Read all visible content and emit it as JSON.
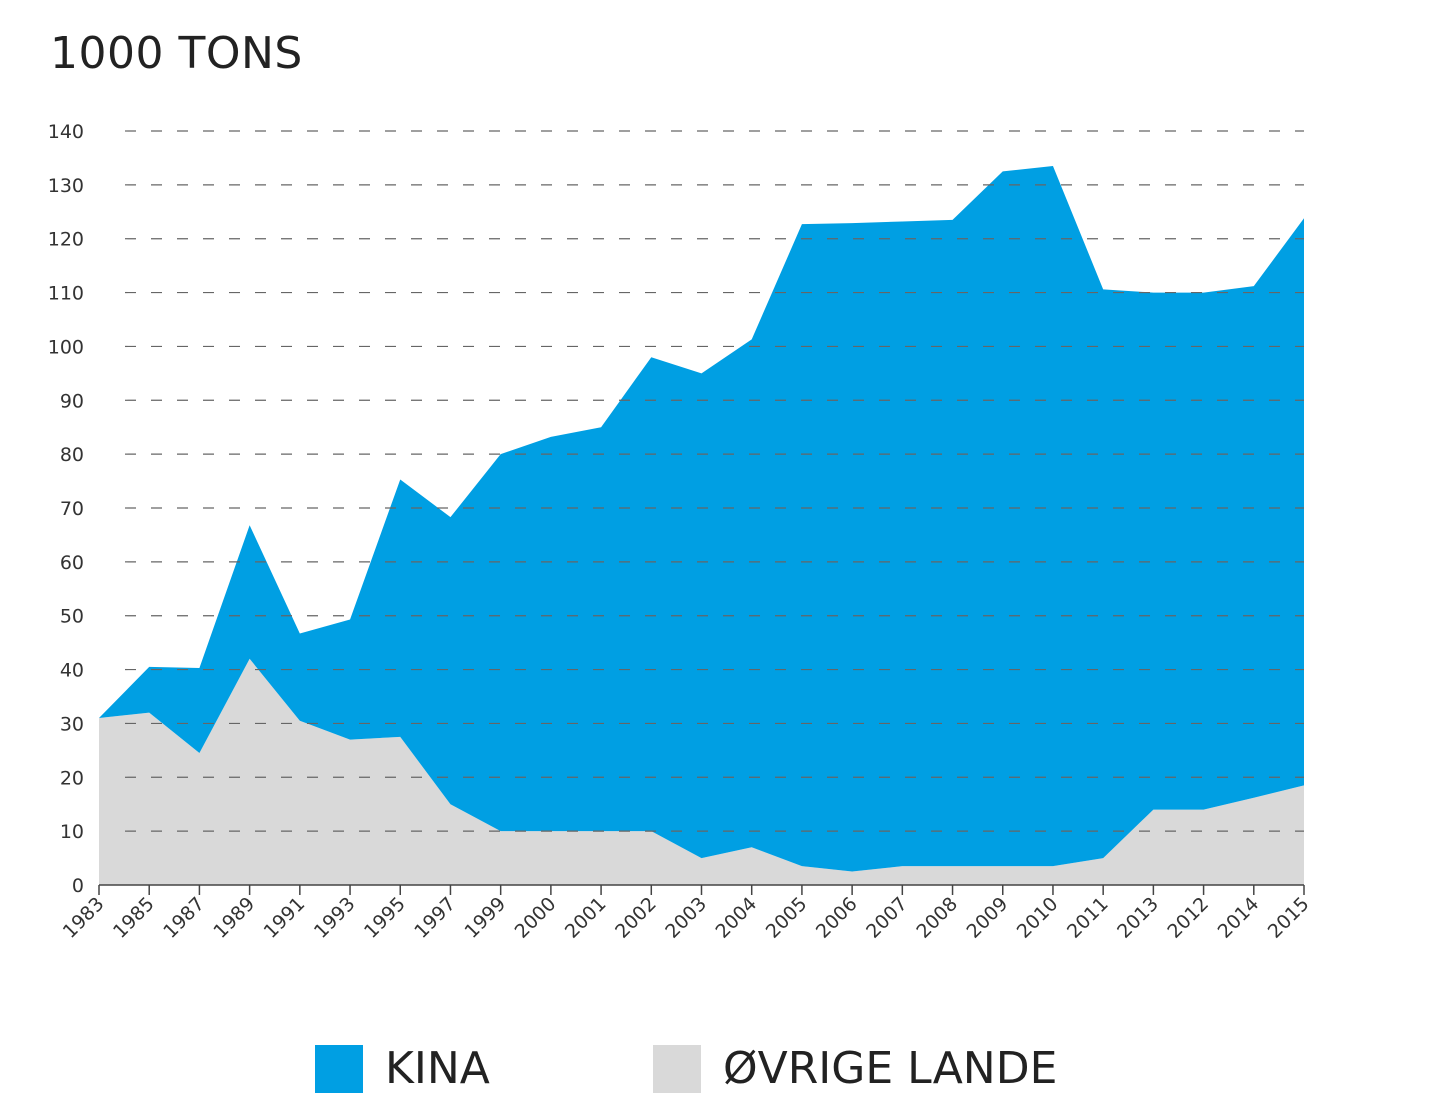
{
  "colors": {
    "kina": "#009fe3",
    "ovrige": "#d9d9d9",
    "grid": "#666666",
    "axis": "#444444"
  },
  "chart_data": {
    "type": "area",
    "stacked": true,
    "title": "1000 TONS",
    "xlabel": "",
    "ylabel": "",
    "ylim": [
      0,
      140
    ],
    "yticks": [
      0,
      10,
      20,
      30,
      40,
      50,
      60,
      70,
      80,
      90,
      100,
      110,
      120,
      130,
      140
    ],
    "grid": true,
    "legend_position": "bottom",
    "categories": [
      "1983",
      "1985",
      "1987",
      "1989",
      "1991",
      "1993",
      "1995",
      "1997",
      "1999",
      "2000",
      "2001",
      "2002",
      "2003",
      "2004",
      "2005",
      "2006",
      "2007",
      "2008",
      "2009",
      "2010",
      "2011",
      "2013",
      "2012",
      "2014",
      "2015"
    ],
    "series": [
      {
        "name": "ØVRIGE LANDE",
        "color": "#d9d9d9",
        "values": [
          31,
          32,
          24.5,
          42,
          30.5,
          27,
          27.5,
          15,
          10,
          10,
          10,
          10,
          5,
          7,
          3.5,
          2.5,
          3.5,
          3.5,
          3.5,
          3.5,
          5,
          14,
          14,
          16.2,
          18.5
        ]
      },
      {
        "name": "KINA",
        "color": "#009fe3",
        "values": [
          0,
          8.5,
          15.8,
          24.8,
          16.2,
          22.3,
          47.8,
          53.3,
          70,
          73.2,
          75,
          88,
          90,
          94.3,
          119.2,
          120.4,
          119.7,
          120,
          129,
          130,
          105.6,
          96,
          96,
          95,
          105.3
        ]
      }
    ],
    "totals": [
      31,
      40.5,
      40.3,
      66.8,
      46.7,
      49.3,
      75.3,
      68.3,
      80,
      83.2,
      85,
      98,
      95,
      101.3,
      122.7,
      122.9,
      123.2,
      123.5,
      132.5,
      133.5,
      110.6,
      110,
      110,
      111.2,
      123.8
    ]
  }
}
